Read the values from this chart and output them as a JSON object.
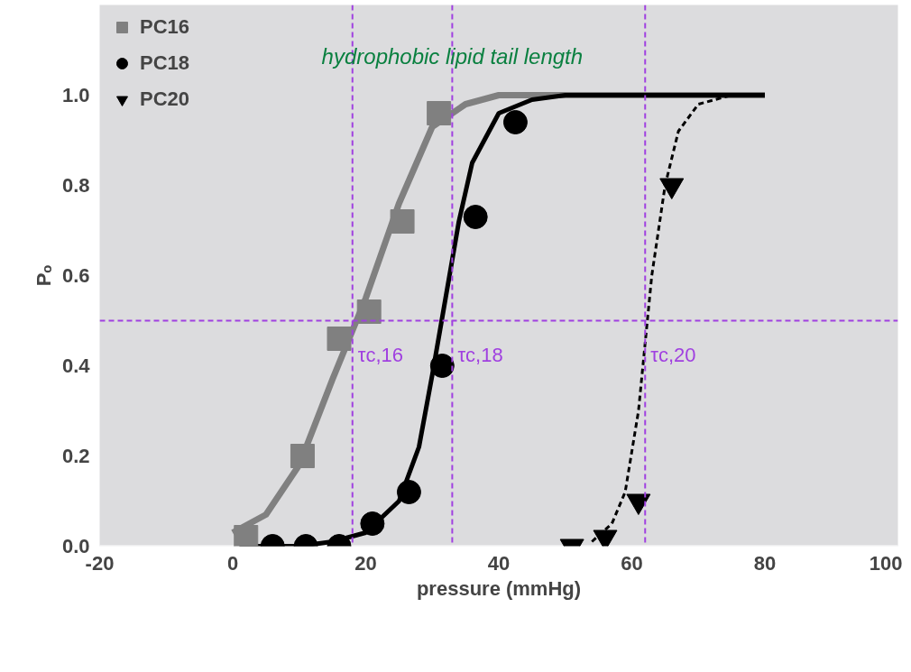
{
  "chart_data": {
    "type": "scatter",
    "xlabel": "pressure (mmHg)",
    "ylabel": "Pₒ",
    "xlim": [
      -20,
      100
    ],
    "ylim": [
      0,
      1.2
    ],
    "xticks": [
      -20,
      0,
      20,
      40,
      60,
      80,
      100
    ],
    "yticks": [
      {
        "value": 0,
        "label": "0.0"
      },
      {
        "value": 0.2,
        "label": "0.2"
      },
      {
        "value": 0.4,
        "label": "0.4"
      },
      {
        "value": 0.6,
        "label": "0.6"
      },
      {
        "value": 0.8,
        "label": "0.8"
      },
      {
        "value": 1,
        "label": "1.0"
      }
    ],
    "grid": false,
    "legend": "top left",
    "series": [
      {
        "type": "line",
        "color": "#808080",
        "line_style": "solid",
        "x": [
          0,
          5,
          10,
          15,
          20,
          25,
          30,
          35,
          40,
          50,
          60,
          80
        ],
        "values": [
          0.03,
          0.07,
          0.18,
          0.37,
          0.55,
          0.76,
          0.93,
          0.98,
          1.0,
          1.0,
          1.0,
          1.0
        ]
      },
      {
        "type": "line",
        "color": "#000000",
        "line_style": "solid",
        "x": [
          1,
          10,
          15,
          20,
          25,
          28,
          30,
          32,
          34,
          36,
          40,
          45,
          50,
          80
        ],
        "values": [
          0,
          0,
          0.01,
          0.03,
          0.1,
          0.22,
          0.38,
          0.55,
          0.72,
          0.85,
          0.96,
          0.99,
          1.0,
          1.0
        ]
      },
      {
        "type": "line",
        "color": "#000000",
        "line_style": "dashed",
        "x": [
          54,
          57,
          59,
          61,
          62,
          63,
          65,
          67,
          70,
          75,
          80
        ],
        "values": [
          0.01,
          0.05,
          0.12,
          0.3,
          0.45,
          0.6,
          0.8,
          0.92,
          0.98,
          1.0,
          1.0
        ]
      },
      {
        "name": "PC16",
        "color": "#808080",
        "marker": "square",
        "x": [
          2,
          10.5,
          16,
          20.5,
          25.5,
          31
        ],
        "values": [
          0.02,
          0.2,
          0.46,
          0.52,
          0.72,
          0.96
        ]
      },
      {
        "name": "PC18",
        "color": "#000000",
        "marker": "circle",
        "x": [
          6,
          11,
          16,
          21,
          26.5,
          31.5,
          36.5,
          42.5
        ],
        "values": [
          0,
          0,
          0,
          0.05,
          0.12,
          0.4,
          0.73,
          0.94
        ]
      },
      {
        "name": "PC20",
        "color": "#000000",
        "marker": "triangle",
        "x": [
          51,
          56,
          61,
          66
        ],
        "values": [
          0,
          0.02,
          0.1,
          0.8
        ]
      }
    ],
    "ref_lines": [
      {
        "axis": "y",
        "value": 0.5,
        "label": null,
        "color": "#a040e0",
        "line_style": "dashed"
      },
      {
        "axis": "x",
        "value": 18,
        "label": "τc,16",
        "color": "#a040e0",
        "line_style": "dashed"
      },
      {
        "axis": "x",
        "value": 33,
        "label": "τc,18",
        "color": "#a040e0",
        "line_style": "dashed"
      },
      {
        "axis": "x",
        "value": 62,
        "label": "τc,20",
        "color": "#a040e0",
        "line_style": "dashed"
      }
    ],
    "annotations": [
      {
        "text": "hydrophobic lipid tail length",
        "x": 33,
        "y": 1.06
      }
    ]
  }
}
